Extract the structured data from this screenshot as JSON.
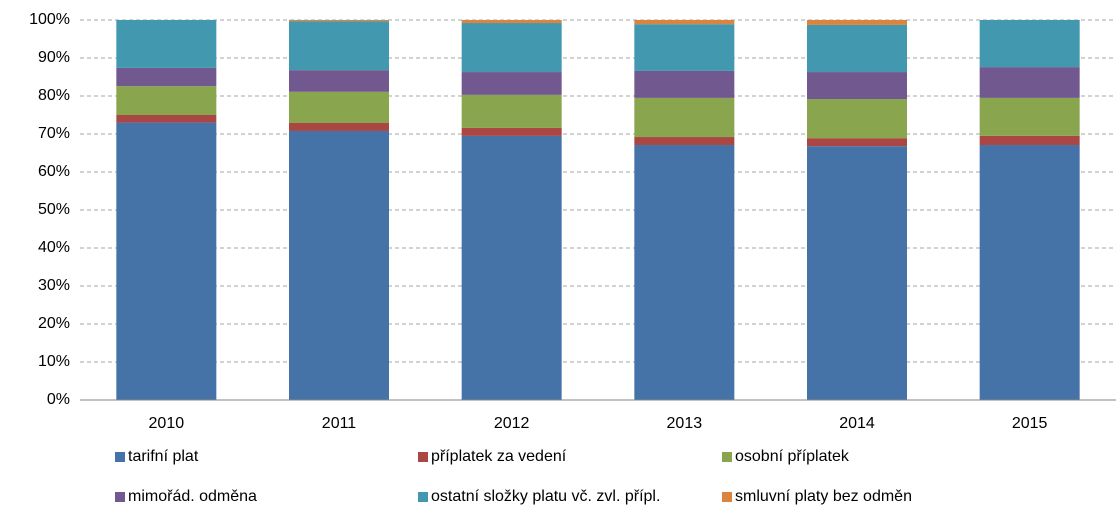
{
  "chart_data": {
    "type": "stacked_bar",
    "categories": [
      "2010",
      "2011",
      "2012",
      "2013",
      "2014",
      "2015"
    ],
    "series": [
      {
        "name": "tarifní plat",
        "color": "#4572a7",
        "values": [
          73,
          70.8,
          69.5,
          67.1,
          66.8,
          67.1
        ]
      },
      {
        "name": "příplatek za vedení",
        "color": "#aa4643",
        "values": [
          2,
          2.1,
          2.1,
          2.1,
          2.1,
          2.4
        ]
      },
      {
        "name": "osobní příplatek",
        "color": "#89a54e",
        "values": [
          7.6,
          8.2,
          8.7,
          10.3,
          10.3,
          10
        ]
      },
      {
        "name": "mimořád. odměna",
        "color": "#71588f",
        "values": [
          4.8,
          5.7,
          6,
          7.1,
          7.1,
          8.1
        ]
      },
      {
        "name": "ostatní složky platu vč. zvl. přípl.",
        "color": "#4198af",
        "values": [
          12.6,
          12.9,
          12.9,
          12.3,
          12.4,
          12.4
        ]
      },
      {
        "name": "smluvní platy bez odměn",
        "color": "#db843d",
        "values": [
          0,
          0.3,
          0.8,
          1.1,
          1.3,
          0
        ]
      }
    ],
    "ylim": [
      0,
      100
    ],
    "yticks": [
      {
        "value": 0,
        "label": "0%"
      },
      {
        "value": 10,
        "label": "10%"
      },
      {
        "value": 20,
        "label": "20%"
      },
      {
        "value": 30,
        "label": "30%"
      },
      {
        "value": 40,
        "label": "40%"
      },
      {
        "value": 50,
        "label": "50%"
      },
      {
        "value": 60,
        "label": "60%"
      },
      {
        "value": 70,
        "label": "70%"
      },
      {
        "value": 80,
        "label": "80%"
      },
      {
        "value": 90,
        "label": "90%"
      },
      {
        "value": 100,
        "label": "100%"
      }
    ],
    "grid": true
  }
}
